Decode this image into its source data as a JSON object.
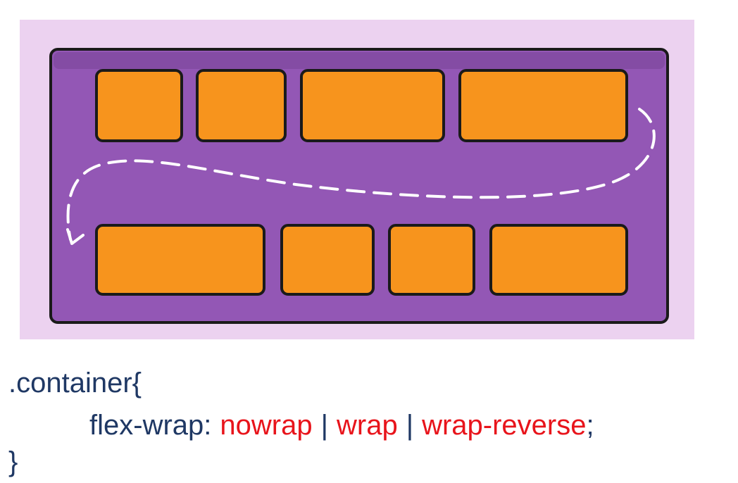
{
  "code": {
    "selector": ".container{",
    "property": "flex-wrap:",
    "values": [
      "nowrap",
      "wrap",
      "wrap-reverse"
    ],
    "separators": [
      "|",
      "|"
    ],
    "terminator": ";",
    "closing": "}"
  }
}
